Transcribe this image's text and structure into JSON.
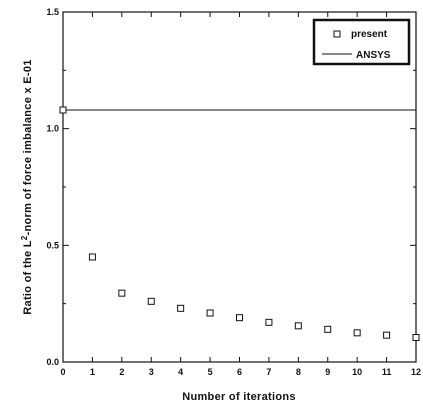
{
  "chart_data": {
    "type": "scatter",
    "title": "",
    "xlabel": "Number of iterations",
    "ylabel_parts": {
      "before": "Ratio of the L",
      "superscript": "2",
      "after": "-norm of force imbalance  x  E-01"
    },
    "xlim": [
      0,
      12
    ],
    "ylim": [
      0.0,
      1.5
    ],
    "x_ticks": [
      "0",
      "1",
      "2",
      "3",
      "4",
      "5",
      "6",
      "7",
      "8",
      "9",
      "10",
      "11",
      "12"
    ],
    "y_ticks": [
      "0.0",
      "0.5",
      "1.0",
      "1.5"
    ],
    "grid": false,
    "legend_position": "top-right",
    "series": [
      {
        "name": "present",
        "marker": "open-square",
        "x": [
          0,
          1,
          2,
          3,
          4,
          5,
          6,
          7,
          8,
          9,
          10,
          11,
          12
        ],
        "y": [
          1.08,
          0.45,
          0.295,
          0.26,
          0.23,
          0.21,
          0.19,
          0.17,
          0.155,
          0.14,
          0.125,
          0.115,
          0.105
        ]
      },
      {
        "name": "ANSYS",
        "marker": "line",
        "y": 1.08
      }
    ]
  }
}
